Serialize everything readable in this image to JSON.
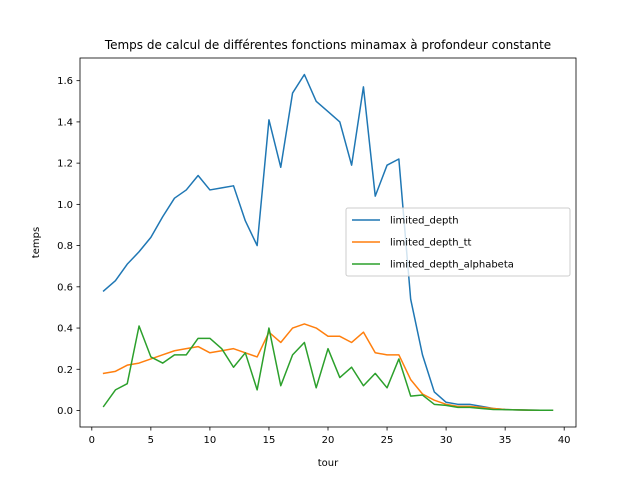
{
  "chart_data": {
    "type": "line",
    "title": "Temps de calcul de différentes fonctions minamax à profondeur constante",
    "xlabel": "tour",
    "ylabel": "temps",
    "xlim": [
      -1,
      41
    ],
    "ylim": [
      -0.08,
      1.71
    ],
    "xticks": [
      0,
      5,
      10,
      15,
      20,
      25,
      30,
      35,
      40
    ],
    "xtick_labels": [
      "0",
      "5",
      "10",
      "15",
      "20",
      "25",
      "30",
      "35",
      "40"
    ],
    "yticks": [
      0.0,
      0.2,
      0.4,
      0.6,
      0.8,
      1.0,
      1.2,
      1.4,
      1.6
    ],
    "ytick_labels": [
      "0.0",
      "0.2",
      "0.4",
      "0.6",
      "0.8",
      "1.0",
      "1.2",
      "1.4",
      "1.6"
    ],
    "grid": false,
    "legend_position": "center-right",
    "x": [
      1,
      2,
      3,
      4,
      5,
      6,
      7,
      8,
      9,
      10,
      11,
      12,
      13,
      14,
      15,
      16,
      17,
      18,
      19,
      20,
      21,
      22,
      23,
      24,
      25,
      26,
      27,
      28,
      29,
      30,
      31,
      32,
      33,
      34,
      35,
      36,
      37,
      38,
      39
    ],
    "series": [
      {
        "name": "limited_depth",
        "color": "#1f77b4",
        "values": [
          0.58,
          0.63,
          0.71,
          0.77,
          0.84,
          0.94,
          1.03,
          1.07,
          1.14,
          1.07,
          1.08,
          1.09,
          0.92,
          0.8,
          1.41,
          1.18,
          1.54,
          1.63,
          1.5,
          1.45,
          1.4,
          1.19,
          1.57,
          1.04,
          1.19,
          1.22,
          0.54,
          0.27,
          0.09,
          0.04,
          0.03,
          0.03,
          0.02,
          0.01,
          0.005,
          0.003,
          0.002,
          0.001,
          0.001
        ]
      },
      {
        "name": "limited_depth_tt",
        "color": "#ff7f0e",
        "values": [
          0.18,
          0.19,
          0.22,
          0.23,
          0.25,
          0.27,
          0.29,
          0.3,
          0.31,
          0.28,
          0.29,
          0.3,
          0.28,
          0.26,
          0.38,
          0.33,
          0.4,
          0.42,
          0.4,
          0.36,
          0.36,
          0.33,
          0.38,
          0.28,
          0.27,
          0.27,
          0.15,
          0.08,
          0.05,
          0.03,
          0.02,
          0.02,
          0.015,
          0.01,
          0.005,
          0.003,
          0.002,
          0.001,
          0.001
        ]
      },
      {
        "name": "limited_depth_alphabeta",
        "color": "#2ca02c",
        "values": [
          0.02,
          0.1,
          0.13,
          0.41,
          0.26,
          0.23,
          0.27,
          0.27,
          0.35,
          0.35,
          0.3,
          0.21,
          0.28,
          0.1,
          0.4,
          0.12,
          0.27,
          0.33,
          0.11,
          0.3,
          0.16,
          0.21,
          0.12,
          0.18,
          0.11,
          0.25,
          0.07,
          0.075,
          0.03,
          0.025,
          0.015,
          0.015,
          0.01,
          0.005,
          0.004,
          0.003,
          0.002,
          0.001,
          0.001
        ]
      }
    ]
  }
}
